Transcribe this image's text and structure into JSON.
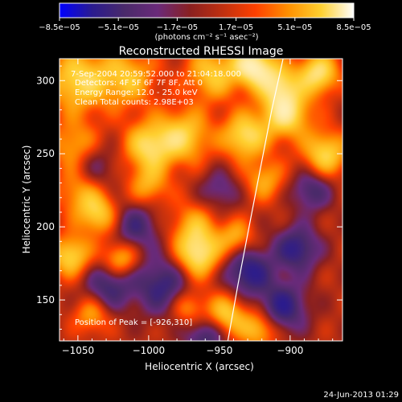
{
  "chart_data": {
    "type": "heatmap",
    "title": "Reconstructed RHESSI Image",
    "xlabel": "Heliocentric X (arcsec)",
    "ylabel": "Heliocentric Y (arcsec)",
    "xlim": [
      -1063,
      -863
    ],
    "ylim": [
      122,
      315
    ],
    "x_ticks": [
      -1050,
      -1000,
      -950,
      -900
    ],
    "y_ticks": [
      150,
      200,
      250,
      300
    ],
    "colorbar": {
      "label": "(photons cm⁻² s⁻¹ asec⁻²)",
      "tick_values": [
        -8.5e-05,
        -5.1e-05,
        -1.7e-05,
        1.7e-05,
        5.1e-05,
        8.5e-05
      ],
      "tick_labels": [
        "−8.5e−05",
        "−5.1e−05",
        "−1.7e−05",
        "1.7e−05",
        "5.1e−05",
        "8.5e−05"
      ],
      "colors": [
        "#0000ff",
        "#2a1b8e",
        "#4a2a6a",
        "#6a2a7a",
        "#8a2020",
        "#c03010",
        "#ff4000",
        "#ff9000",
        "#ffd030",
        "#ffffff"
      ]
    },
    "annotations": [
      "7-Sep-2004 20:59:52.000 to 21:04:18.000",
      "Detectors: 4F 5F 6F 7F 8F, Att 0",
      "Energy Range: 12.0 - 25.0 keV",
      "Clean     Total counts: 2.98E+03",
      "Position of Peak = [-926,310]"
    ],
    "peak": {
      "x": -926,
      "y": 310
    },
    "limb_curve": {
      "x": [
        -944,
        -937,
        -929,
        -921,
        -913,
        -905
      ],
      "y": [
        122,
        160,
        200,
        240,
        280,
        315
      ]
    },
    "blobs": [
      {
        "x": -1050,
        "y": 300,
        "v": 0.75,
        "r": 15
      },
      {
        "x": -1015,
        "y": 302,
        "v": 0.6,
        "r": 14
      },
      {
        "x": -955,
        "y": 305,
        "v": 0.65,
        "r": 13
      },
      {
        "x": -926,
        "y": 310,
        "v": 1.0,
        "r": 10
      },
      {
        "x": -903,
        "y": 278,
        "v": 0.9,
        "r": 12
      },
      {
        "x": -908,
        "y": 298,
        "v": 0.65,
        "r": 10
      },
      {
        "x": -880,
        "y": 305,
        "v": 0.85,
        "r": 10
      },
      {
        "x": -875,
        "y": 250,
        "v": 0.75,
        "r": 11
      },
      {
        "x": -1052,
        "y": 255,
        "v": 0.55,
        "r": 12
      },
      {
        "x": -1000,
        "y": 255,
        "v": 0.75,
        "r": 12
      },
      {
        "x": -975,
        "y": 262,
        "v": 0.7,
        "r": 13
      },
      {
        "x": -932,
        "y": 262,
        "v": 0.8,
        "r": 11
      },
      {
        "x": -1048,
        "y": 225,
        "v": 0.55,
        "r": 12
      },
      {
        "x": -1035,
        "y": 208,
        "v": 0.65,
        "r": 10
      },
      {
        "x": -1000,
        "y": 228,
        "v": 0.5,
        "r": 10
      },
      {
        "x": -968,
        "y": 200,
        "v": 0.5,
        "r": 12
      },
      {
        "x": -918,
        "y": 232,
        "v": 0.5,
        "r": 10
      },
      {
        "x": -1055,
        "y": 180,
        "v": 0.75,
        "r": 10
      },
      {
        "x": -1020,
        "y": 178,
        "v": 0.7,
        "r": 9
      },
      {
        "x": -965,
        "y": 180,
        "v": 0.85,
        "r": 11
      },
      {
        "x": -938,
        "y": 192,
        "v": 0.55,
        "r": 9
      },
      {
        "x": -1040,
        "y": 140,
        "v": 0.5,
        "r": 9
      },
      {
        "x": -972,
        "y": 145,
        "v": 0.5,
        "r": 9
      },
      {
        "x": -945,
        "y": 140,
        "v": 0.7,
        "r": 10
      },
      {
        "x": -922,
        "y": 130,
        "v": 0.65,
        "r": 9
      },
      {
        "x": -1028,
        "y": 160,
        "v": -0.6,
        "r": 12
      },
      {
        "x": -990,
        "y": 160,
        "v": -0.65,
        "r": 14
      },
      {
        "x": -1010,
        "y": 200,
        "v": -0.55,
        "r": 12
      },
      {
        "x": -1040,
        "y": 240,
        "v": -0.45,
        "r": 12
      },
      {
        "x": -930,
        "y": 170,
        "v": -0.75,
        "r": 12
      },
      {
        "x": -895,
        "y": 185,
        "v": -0.7,
        "r": 11
      },
      {
        "x": -905,
        "y": 145,
        "v": -0.7,
        "r": 12
      },
      {
        "x": -960,
        "y": 125,
        "v": -0.6,
        "r": 10
      },
      {
        "x": -885,
        "y": 225,
        "v": -0.55,
        "r": 10
      },
      {
        "x": -950,
        "y": 225,
        "v": -0.4,
        "r": 10
      }
    ]
  },
  "footer": {
    "timestamp": "24-Jun-2013 01:29"
  }
}
